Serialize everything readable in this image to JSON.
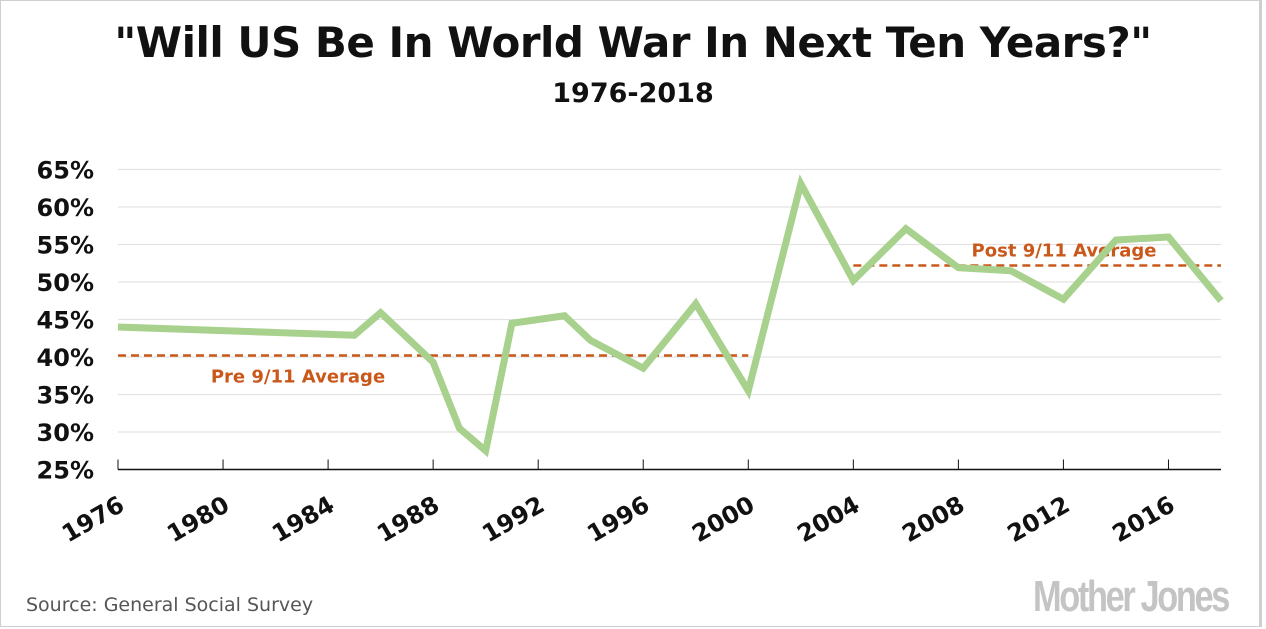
{
  "chart_data": {
    "type": "line",
    "title": "\"Will US Be In World War In Next Ten Years?\"",
    "subtitle": "1976-2018",
    "xlabel": "",
    "ylabel": "",
    "xlim": [
      1976,
      2018
    ],
    "ylim": [
      25,
      65
    ],
    "x_ticks": [
      "1976",
      "1980",
      "1984",
      "1988",
      "1992",
      "1996",
      "2000",
      "2004",
      "2008",
      "2012",
      "2016"
    ],
    "y_ticks": [
      "25%",
      "30%",
      "35%",
      "40%",
      "45%",
      "50%",
      "55%",
      "60%",
      "65%"
    ],
    "grid": "horizontal",
    "series": [
      {
        "x": [
          1976,
          1985,
          1986,
          1988,
          1989,
          1990,
          1991,
          1993,
          1994,
          1996,
          1998,
          2000,
          2002,
          2004,
          2006,
          2008,
          2010,
          2012,
          2014,
          2016,
          2018
        ],
        "values": [
          44.0,
          42.9,
          45.9,
          39.3,
          30.5,
          27.5,
          44.5,
          45.5,
          42.2,
          38.5,
          47.1,
          35.5,
          63.1,
          50.2,
          57.1,
          51.9,
          51.5,
          47.7,
          55.6,
          56.0,
          47.5
        ],
        "color": "#a8d18d"
      }
    ],
    "reference_lines": [
      {
        "label": "Pre 9/11 Average",
        "value": 40.2,
        "x_range": [
          1976,
          2000
        ],
        "color": "#c9581a"
      },
      {
        "label": "Post 9/11 Average",
        "value": 52.2,
        "x_range": [
          2004,
          2018
        ],
        "color": "#c9581a"
      }
    ],
    "source": "Source: General Social Survey",
    "logo": "Mother Jones"
  }
}
